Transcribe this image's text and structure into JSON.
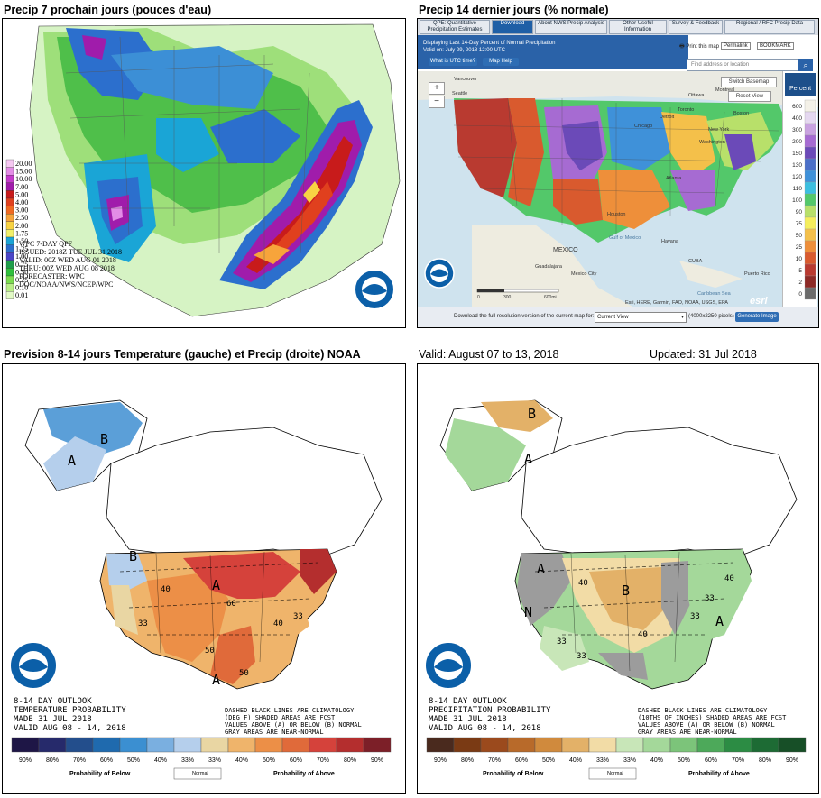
{
  "captions": {
    "top_left": "Precip 7 prochain jours (pouces d'eau)",
    "top_right": "Precip 14 dernier jours (% normale)",
    "bottom_left": "Prevision 8-14 jours Temperature (gauche) et Precip (droite) NOAA",
    "valid": "Valid: August 07 to 13, 2018",
    "updated": "Updated: 31 Jul 2018"
  },
  "qpf": {
    "legend": [
      "20.00",
      "15.00",
      "10.00",
      "7.00",
      "5.00",
      "4.00",
      "3.00",
      "2.50",
      "2.00",
      "1.75",
      "1.50",
      "1.25",
      "1.00",
      "0.75",
      "0.50",
      "0.25",
      "0.10",
      "0.01"
    ],
    "legend_colors": [
      "#f6c8f2",
      "#e38ce6",
      "#c53bcc",
      "#a01cab",
      "#c81b1b",
      "#e0401e",
      "#f06a22",
      "#f7a43b",
      "#f8d343",
      "#f2f06a",
      "#1aa5d6",
      "#2c6fcd",
      "#4a45c8",
      "#1f9e4a",
      "#2fbf3c",
      "#7bdc4f",
      "#b9ee88",
      "#e2fac6"
    ],
    "info_lines": [
      "WPC 7-DAY QPF",
      "ISSUED: 2018Z TUE JUL 31 2018",
      "VALID: 00Z WED AUG 01 2018",
      "THRU: 00Z WED AUG 08 2018",
      "FORECASTER: WPC",
      "DOC/NOAA/NWS/NCEP/WPC"
    ]
  },
  "qpe": {
    "tabs": [
      "QPE: Quantitative Precipitation Estimates",
      "Download",
      "About NWS Precip Analysis",
      "Other Useful Information",
      "Survey & Feedback",
      "Regional / RFC Precip Data"
    ],
    "displaying": "Displaying Last 14-Day Percent of Normal Precipitation",
    "valid": "Valid on: July 29, 2018 12:00 UTC",
    "btn_utc": "What is UTC time?",
    "btn_help": "Map Help",
    "print": "Print this map",
    "permalink": "Permalink",
    "bookmark": "BOOKMARK",
    "search_placeholder": "Find address or location",
    "switch_basemap": "Switch Basemap",
    "reset_view": "Reset View",
    "zoom_in": "+",
    "zoom_out": "−",
    "percent_label": "Percent",
    "scale": [
      "600",
      "400",
      "300",
      "200",
      "150",
      "130",
      "120",
      "110",
      "100",
      "90",
      "75",
      "50",
      "25",
      "10",
      "5",
      "2",
      "0"
    ],
    "scale_colors": [
      "#f4f1e8",
      "#e5d8f0",
      "#c9a2e0",
      "#a66bd2",
      "#6b4ab8",
      "#4b6fc8",
      "#3f91d9",
      "#3cbfe0",
      "#53c86a",
      "#b8e06a",
      "#f5ee5c",
      "#f4c04a",
      "#ee8f3a",
      "#d95a2e",
      "#b93a30",
      "#8d2a26",
      "#6b6b6b"
    ],
    "place_labels": [
      "Vancouver",
      "Seattle",
      "Ottawa",
      "Montreal",
      "Toronto",
      "Detroit",
      "Chicago",
      "Boston",
      "New York",
      "Washington",
      "Houston",
      "Atlanta",
      "MEXICO",
      "Gulf of Mexico",
      "Havana",
      "CUBA",
      "Guadalajara",
      "Mexico City",
      "Puerto Rico",
      "Caribbean Sea"
    ],
    "scale_bar": [
      "0",
      "300",
      "600mi"
    ],
    "attribution": "Esri, HERE, Garmin, FAO, NOAA, USGS, EPA",
    "esri": "esri",
    "download_text": "Download the full resolution version of the current map for:",
    "select_value": "Current View",
    "pixels": "(4000x2250 pixels)",
    "generate": "Generate Image"
  },
  "temp_outlook": {
    "title_lines": [
      "8-14 DAY OUTLOOK",
      "TEMPERATURE PROBABILITY",
      "MADE   31 JUL 2018",
      "VALID   AUG 08 - 14, 2018"
    ],
    "note_lines": [
      "DASHED BLACK LINES ARE CLIMATOLOGY",
      "(DEG F) SHADED AREAS ARE FCST",
      "VALUES ABOVE (A) OR BELOW (B) NORMAL",
      "GRAY AREAS ARE NEAR-NORMAL"
    ],
    "map_labels": [
      "B",
      "A",
      "A",
      "A",
      "B",
      "40",
      "60",
      "50",
      "40",
      "33",
      "50",
      "33"
    ],
    "scale_labels": [
      "90%",
      "80%",
      "70%",
      "60%",
      "50%",
      "40%",
      "33%",
      "33%",
      "40%",
      "50%",
      "60%",
      "70%",
      "80%",
      "90%"
    ],
    "scale_colors": [
      "#1e1646",
      "#262a6b",
      "#234e8c",
      "#1f6aae",
      "#3b8fd1",
      "#7aafe0",
      "#b5cfec",
      "#e9d6a3",
      "#efb46b",
      "#ec8f47",
      "#e06a3a",
      "#d5423b",
      "#b42e2e",
      "#7c1f28"
    ],
    "below_label": "Probability of Below",
    "normal_label": "Normal",
    "above_label": "Probability of Above"
  },
  "precip_outlook": {
    "title_lines": [
      "8-14 DAY OUTLOOK",
      "PRECIPITATION PROBABILITY",
      "MADE   31 JUL 2018",
      "VALID   AUG 08 - 14, 2018"
    ],
    "note_lines": [
      "DASHED BLACK LINES ARE CLIMATOLOGY",
      "(10THS OF INCHES) SHADED AREAS ARE FCST",
      "VALUES ABOVE (A) OR BELOW (B) NORMAL",
      "GRAY AREAS ARE NEAR-NORMAL"
    ],
    "map_labels": [
      "B",
      "A",
      "A",
      "B",
      "A",
      "N",
      "40",
      "40",
      "33",
      "33",
      "33",
      "33",
      "40"
    ],
    "scale_labels": [
      "90%",
      "80%",
      "70%",
      "60%",
      "50%",
      "40%",
      "33%",
      "33%",
      "40%",
      "50%",
      "60%",
      "70%",
      "80%",
      "90%"
    ],
    "scale_colors": [
      "#4a2a1e",
      "#7a3a14",
      "#9b4a1d",
      "#b86a2a",
      "#d08a3d",
      "#e3b168",
      "#f2dca6",
      "#c8e6b8",
      "#a4d89a",
      "#7cc47a",
      "#4da95a",
      "#2c8c44",
      "#1d6b34",
      "#174f27"
    ],
    "below_label": "Probability of Below",
    "normal_label": "Normal",
    "above_label": "Probability of Above"
  }
}
